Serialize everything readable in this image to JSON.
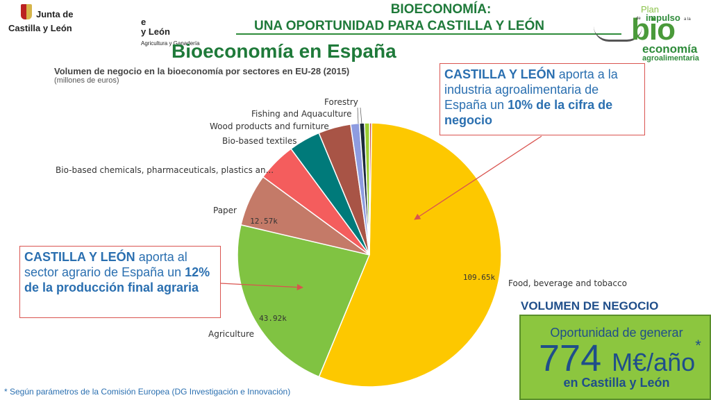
{
  "header": {
    "title_line1": "BIOECONOMÍA:",
    "title_line2": "UNA OPORTUNIDAD PARA CASTILLA Y LEÓN"
  },
  "logo_left": {
    "line1": "Junta de",
    "line2": "Castilla y León"
  },
  "logo_ghost": {
    "top": "e",
    "line1": "y León",
    "line2": "Agricultura y Ganadería"
  },
  "logo_plan": {
    "plan": "Plan",
    "de": "de",
    "impulso": "impulso",
    "ala": "a la",
    "bio": "bio",
    "economia": "economía",
    "agro": "agroalimentaria"
  },
  "main_heading": "Bioeconomía en España",
  "chart_data": {
    "type": "pie",
    "title": "Volumen de negocio en la bioeconomía por sectores en EU-28 (2015)",
    "subtitle": "(millones de euros)",
    "slices": [
      {
        "label": "Food, beverage and tobacco",
        "value": 109.65,
        "data_label": "109.65k",
        "color": "#fdc800"
      },
      {
        "label": "Agriculture",
        "value": 43.92,
        "data_label": "43.92k",
        "color": "#80c342"
      },
      {
        "label": "Paper",
        "value": 12.57,
        "data_label": "12.57k",
        "color": "#c47a68"
      },
      {
        "label": "Bio-based chemicals, pharmaceuticals, plastics an...",
        "value": 9.4,
        "data_label": "",
        "color": "#f45d5d"
      },
      {
        "label": "Bio-based textiles",
        "value": 7.6,
        "data_label": "",
        "color": "#007a7a"
      },
      {
        "label": "Wood products and furniture",
        "value": 7.8,
        "data_label": "",
        "color": "#a85446"
      },
      {
        "label": "Fishing and Aquaculture",
        "value": 2.1,
        "data_label": "",
        "color": "#8e9ce0"
      },
      {
        "label": "Forestry",
        "value": 1.2,
        "data_label": "",
        "color": "#1a2a3a"
      },
      {
        "label": "",
        "value": 1.2,
        "data_label": "",
        "color": "#9acd32"
      },
      {
        "label": "",
        "value": 0.5,
        "data_label": "",
        "color": "#c8574a"
      }
    ]
  },
  "callout_top": {
    "lead": "CASTILLA Y LEÓN",
    "text": " aporta a la industria agroalimentaria de España un ",
    "bold": "10% de la cifra de negocio"
  },
  "callout_left": {
    "lead": "CASTILLA Y LEÓN",
    "text": " aporta al sector agrario de España un ",
    "bold": "12% de la producción final agraria"
  },
  "volume": {
    "heading": "VOLUMEN DE NEGOCIO",
    "line1": "Oportunidad de generar",
    "amount": "774",
    "unit": "M€/año",
    "star": "*",
    "line3": "en Castilla y León"
  },
  "footnote": "* Según parámetros de la Comisión Europea (DG Investigación e Innovación)"
}
